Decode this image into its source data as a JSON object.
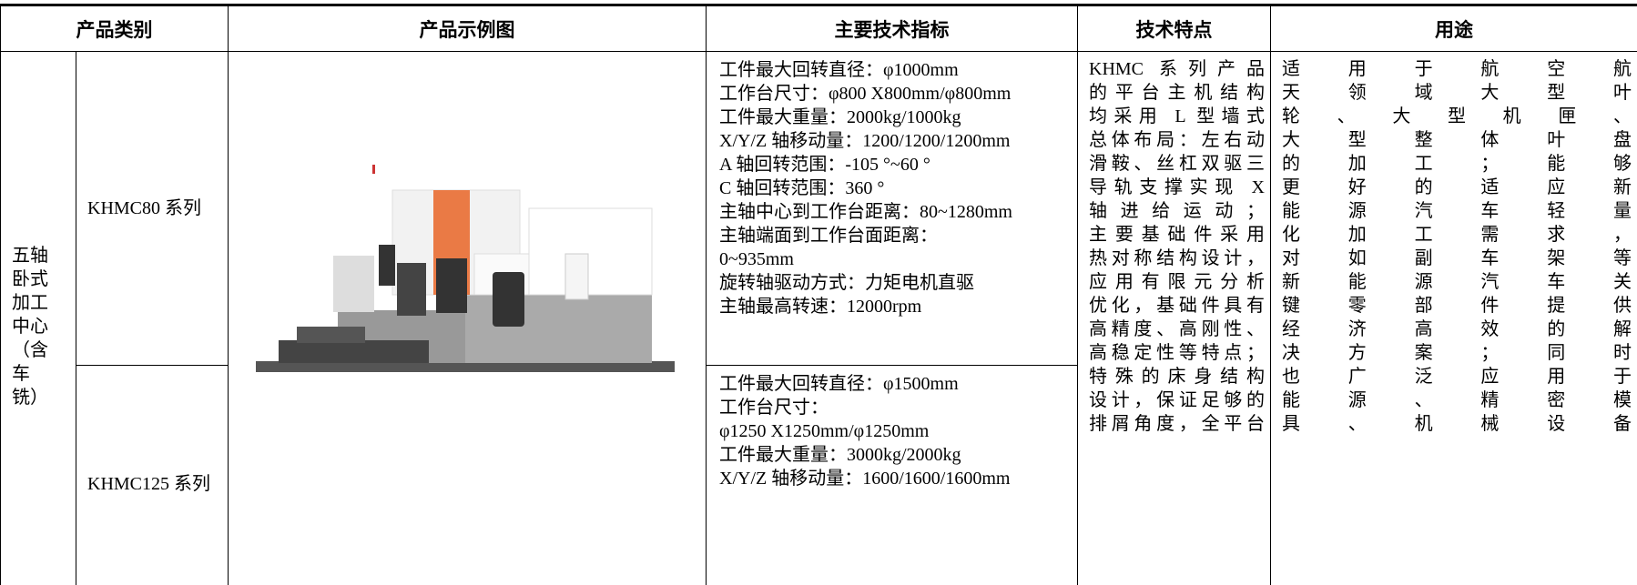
{
  "table": {
    "header": [
      "产品类别",
      "产品示例图",
      "主要技术指标",
      "技术特点",
      "用途"
    ],
    "category": [
      "五轴",
      "卧式",
      "加工",
      "中心",
      "（含",
      "车",
      "铣）"
    ],
    "rows": [
      {
        "series": "KHMC80 系列",
        "specs": [
          "工件最大回转直径：φ1000mm",
          "工作台尺寸：φ800 X800mm/φ800mm",
          "工件最大重量：2000kg/1000kg",
          "X/Y/Z 轴移动量：1200/1200/1200mm",
          "A 轴回转范围：-105 °~60 °",
          "C 轴回转范围：360 °",
          "主轴中心到工作台距离：80~1280mm",
          "主轴端面到工作台面距离：",
          "0~935mm",
          "旋转轴驱动方式：力矩电机直驱",
          "主轴最高转速：12000rpm"
        ]
      },
      {
        "series": "KHMC125 系列",
        "specs": [
          "工件最大回转直径：φ1500mm",
          "工作台尺寸：",
          "φ1250 X1250mm/φ1250mm",
          "工件最大重量：3000kg/2000kg",
          "X/Y/Z 轴移动量：1600/1600/1600mm"
        ]
      }
    ],
    "features": [
      "KHMC 系列产品",
      "的平台主机结构",
      "均采用 L 型墙式",
      "总体布局：左右动",
      "滑鞍、丝杠双驱三",
      "导轨支撑实现 X",
      "轴进给运动；",
      "主要基础件采用",
      "热对称结构设计，",
      "应用有限元分析",
      "优化，基础件具有",
      "高精度、高刚性、",
      "高稳定性等特点；",
      "特殊的床身结构",
      "设计，保证足够的",
      "排屑角度，全平台"
    ],
    "uses": [
      "适用于航空航",
      "天领域大型叶",
      "轮、大型机匣、",
      "大型整体叶盘",
      "的加工；能够",
      "更好的适应新",
      "能源汽车轻量",
      "化加工需求，",
      "对如副车架等",
      "新能源汽车关",
      "键零部件提供",
      "经济高效的解",
      "决方案；同时",
      "也广泛应用于",
      "能源、精密模",
      "具、机械设备"
    ]
  }
}
